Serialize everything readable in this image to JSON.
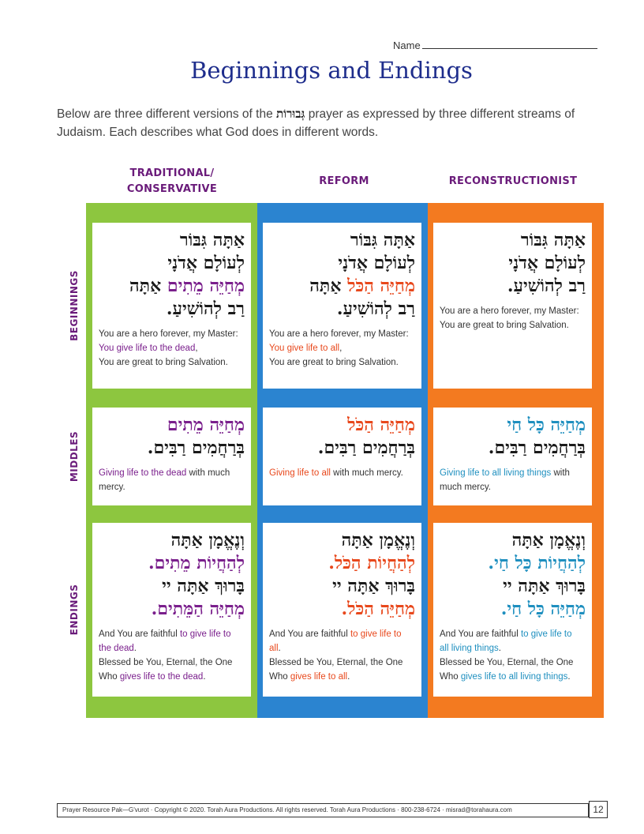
{
  "header": {
    "name_label": "Name",
    "title": "Beginnings and Endings"
  },
  "intro": {
    "before": "Below are three different versions of the ",
    "hebrew_word": "גְּבוּרוֹת",
    "after": " prayer as expressed by three different streams of Judaism. Each describes what God does in different words."
  },
  "columns": [
    {
      "line1": "TRADITIONAL/",
      "line2": "CONSERVATIVE"
    },
    {
      "line1": "REFORM",
      "line2": ""
    },
    {
      "line1": "RECONSTRUCTIONIST",
      "line2": ""
    }
  ],
  "rows": [
    "BEGINNINGS",
    "MIDDLES",
    "ENDINGS"
  ],
  "colors": {
    "green": "#8dc63f",
    "blue": "#2b84d0",
    "orange": "#f37a20",
    "traditional_text": "#7a1f8c",
    "reform_text": "#e8481c",
    "recon_text": "#1e8fbf",
    "title": "#1e2d8c"
  },
  "cards": {
    "trad_beg": {
      "heb": [
        [
          {
            "t": "אַתָּה גִּבּוֹר"
          }
        ],
        [
          {
            "t": "לְעוֹלָם אֲדֹנָי"
          }
        ],
        [
          {
            "t": "מְחַיֵּה מֵתִים",
            "h": true
          },
          {
            "t": " "
          },
          {
            "t": "אַתָּה"
          }
        ],
        [
          {
            "t": "רַב לְהוֹשִׁיעַ."
          }
        ]
      ],
      "eng": [
        [
          {
            "t": "You are a hero forever, my Master:"
          }
        ],
        [
          {
            "t": "You give life to the dead",
            "h": true
          },
          {
            "t": ","
          }
        ],
        [
          {
            "t": "You are great to bring Salvation."
          }
        ]
      ]
    },
    "ref_beg": {
      "heb": [
        [
          {
            "t": "אַתָּה גִּבּוֹר"
          }
        ],
        [
          {
            "t": "לְעוֹלָם אֲדֹנָי"
          }
        ],
        [
          {
            "t": "מְחַיֵּה הַכֹּל",
            "h": true
          },
          {
            "t": " "
          },
          {
            "t": "אַתָּה"
          }
        ],
        [
          {
            "t": "רַב לְהוֹשִׁיעַ."
          }
        ]
      ],
      "eng": [
        [
          {
            "t": "You are a hero forever, my Master:"
          }
        ],
        [
          {
            "t": "You give life to all",
            "h": true
          },
          {
            "t": ","
          }
        ],
        [
          {
            "t": "You are great to bring Salvation."
          }
        ]
      ]
    },
    "rec_beg": {
      "heb": [
        [
          {
            "t": "אַתָּה גִּבּוֹר"
          }
        ],
        [
          {
            "t": "לְעוֹלָם אֲדֹנָי"
          }
        ],
        [
          {
            "t": "רַב לְהוֹשִׁיעַ."
          }
        ]
      ],
      "eng": [
        [
          {
            "t": "You are a hero forever, my Master:"
          }
        ],
        [
          {
            "t": "You are great to bring Salvation."
          }
        ]
      ]
    },
    "trad_mid": {
      "heb": [
        [
          {
            "t": "מְחַיֵּה מֵתִים",
            "h": true
          }
        ],
        [
          {
            "t": "בְּרַחֲמִים רַבִּים."
          }
        ]
      ],
      "eng": [
        [
          {
            "t": "Giving life to the dead",
            "h": true
          },
          {
            "t": " with much"
          }
        ],
        [
          {
            "t": "mercy."
          }
        ]
      ]
    },
    "ref_mid": {
      "heb": [
        [
          {
            "t": "מְחַיֵּה הַכֹּל",
            "h": true
          }
        ],
        [
          {
            "t": "בְּרַחֲמִים רַבִּים."
          }
        ]
      ],
      "eng": [
        [
          {
            "t": "Giving life to all",
            "h": true
          },
          {
            "t": " with much mercy."
          }
        ]
      ]
    },
    "rec_mid": {
      "heb": [
        [
          {
            "t": "מְחַיֵּה כָּל חַי",
            "h": true
          }
        ],
        [
          {
            "t": "בְּרַחֲמִים רַבִּים."
          }
        ]
      ],
      "eng": [
        [
          {
            "t": "Giving life to all living things",
            "h": true
          },
          {
            "t": " with"
          }
        ],
        [
          {
            "t": "much mercy."
          }
        ]
      ]
    },
    "trad_end": {
      "heb": [
        [
          {
            "t": "וְנֶאֱמָן אַתָּה"
          }
        ],
        [
          {
            "t": "לְהַחֲיוֹת מֵתִים.",
            "h": true
          }
        ],
        [
          {
            "t": "בָּרוּךְ אַתָּה יי"
          }
        ],
        [
          {
            "t": "מְחַיֵּה הַמֵּתִים.",
            "h": true
          }
        ]
      ],
      "eng": [
        [
          {
            "t": "And You are faithful "
          },
          {
            "t": "to give life to",
            "h": true
          }
        ],
        [
          {
            "t": "the dead",
            "h": true
          },
          {
            "t": "."
          }
        ],
        [
          {
            "t": "Blessed be You, Eternal, the One"
          }
        ],
        [
          {
            "t": "Who "
          },
          {
            "t": "gives life to the dead",
            "h": true
          },
          {
            "t": "."
          }
        ]
      ]
    },
    "ref_end": {
      "heb": [
        [
          {
            "t": "וְנֶאֱמָן אַתָּה"
          }
        ],
        [
          {
            "t": "לְהַחֲיוֹת הַכֹּל.",
            "h": true
          }
        ],
        [
          {
            "t": "בָּרוּךְ אַתָּה יי"
          }
        ],
        [
          {
            "t": "מְחַיֵּה הַכֹּל.",
            "h": true
          }
        ]
      ],
      "eng": [
        [
          {
            "t": "And You are faithful "
          },
          {
            "t": "to give life to",
            "h": true
          }
        ],
        [
          {
            "t": "all",
            "h": true
          },
          {
            "t": "."
          }
        ],
        [
          {
            "t": "Blessed be You, Eternal, the One"
          }
        ],
        [
          {
            "t": "Who "
          },
          {
            "t": "gives life to all",
            "h": true
          },
          {
            "t": "."
          }
        ]
      ]
    },
    "rec_end": {
      "heb": [
        [
          {
            "t": "וְנֶאֱמָן אַתָּה"
          }
        ],
        [
          {
            "t": "לְהַחֲיוֹת כָּל חַי.",
            "h": true
          }
        ],
        [
          {
            "t": "בָּרוּךְ אַתָּה יי"
          }
        ],
        [
          {
            "t": "מְחַיֵּה כָּל חַי.",
            "h": true
          }
        ]
      ],
      "eng": [
        [
          {
            "t": "And You are faithful "
          },
          {
            "t": "to give life to",
            "h": true
          }
        ],
        [
          {
            "t": "all living things",
            "h": true
          },
          {
            "t": "."
          }
        ],
        [
          {
            "t": "Blessed be You, Eternal, the One"
          }
        ],
        [
          {
            "t": "Who "
          },
          {
            "t": "gives life to all living things",
            "h": true
          },
          {
            "t": "."
          }
        ]
      ]
    }
  },
  "footer": {
    "text": "Prayer Resource Pak—G'vurot · Copyright © 2020. Torah Aura Productions. All rights reserved. Torah Aura Productions · 800-238-6724 · misrad@torahaura.com",
    "page": "12"
  }
}
